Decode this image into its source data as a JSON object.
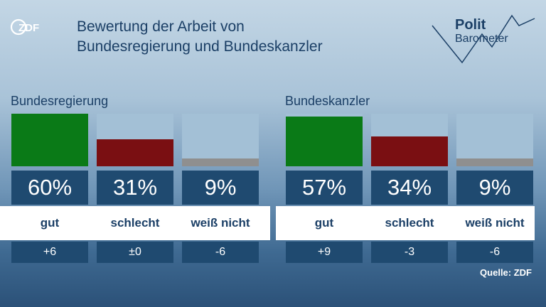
{
  "header": {
    "logo_text": "ZDF",
    "title_line1": "Bewertung der Arbeit von",
    "title_line2": "Bundesregierung und Bundeskanzler",
    "brand_line1": "Polit",
    "brand_line2": "Barometer"
  },
  "colors": {
    "gut": "#0a7a17",
    "schlecht": "#7a0f12",
    "weiss_nicht": "#8f8f8f",
    "bar_background": "#a3c0d6"
  },
  "chart_data": [
    {
      "type": "bar",
      "title": "Bundesregierung",
      "categories": [
        "gut",
        "schlecht",
        "weiß nicht"
      ],
      "values": [
        60,
        31,
        9
      ],
      "value_labels": [
        "60%",
        "31%",
        "9%"
      ],
      "changes": [
        "+6",
        "±0",
        "-6"
      ],
      "ylim": [
        0,
        60
      ]
    },
    {
      "type": "bar",
      "title": "Bundeskanzler",
      "categories": [
        "gut",
        "schlecht",
        "weiß nicht"
      ],
      "values": [
        57,
        34,
        9
      ],
      "value_labels": [
        "57%",
        "34%",
        "9%"
      ],
      "changes": [
        "+9",
        "-3",
        "-6"
      ],
      "ylim": [
        0,
        60
      ]
    }
  ],
  "footer": {
    "source": "Quelle: ZDF"
  }
}
